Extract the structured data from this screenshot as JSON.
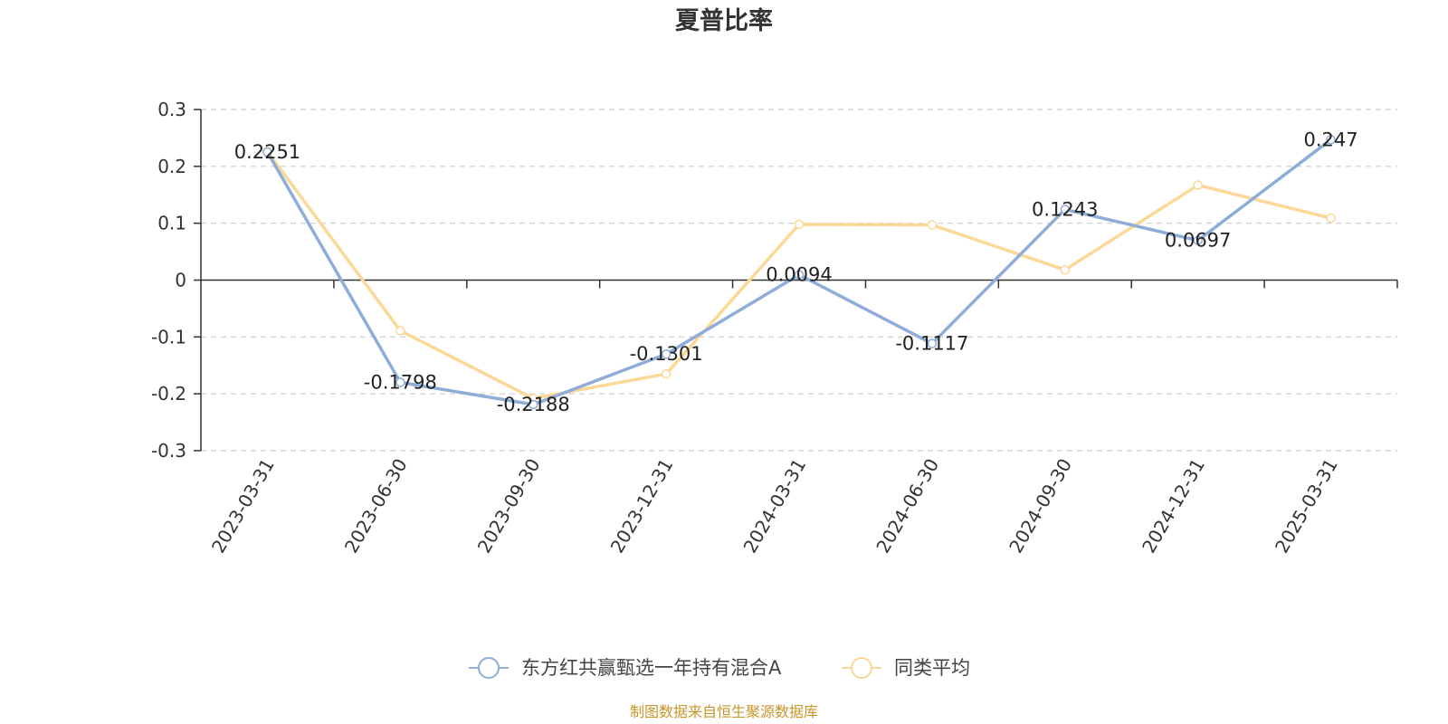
{
  "chart_data": {
    "type": "line",
    "title": "夏普比率",
    "categories": [
      "2023-03-31",
      "2023-06-30",
      "2023-09-30",
      "2023-12-31",
      "2024-03-31",
      "2024-06-30",
      "2024-09-30",
      "2024-12-31",
      "2025-03-31"
    ],
    "ylim": [
      -0.3,
      0.3
    ],
    "yticks": [
      0.3,
      0.2,
      0.1,
      0,
      -0.1,
      -0.2,
      -0.3
    ],
    "ytick_labels": [
      "0.3",
      "0.2",
      "0.1",
      "0",
      "-0.1",
      "-0.2",
      "-0.3"
    ],
    "grid": true,
    "legend_position": "bottom-center",
    "series": [
      {
        "name": "东方红共赢甄选一年持有混合A",
        "color": "#8eadd8",
        "values": [
          0.2251,
          -0.1798,
          -0.2188,
          -0.1301,
          0.0094,
          -0.1117,
          0.1243,
          0.0697,
          0.247
        ],
        "labels": [
          "0.2251",
          "-0.1798",
          "-0.2188",
          "-0.1301",
          "0.0094",
          "-0.1117",
          "0.1243",
          "0.0697",
          "0.247"
        ]
      },
      {
        "name": "同类平均",
        "color": "#fbd896",
        "values": [
          0.226,
          -0.089,
          -0.208,
          -0.165,
          0.098,
          0.097,
          0.018,
          0.167,
          0.109
        ]
      }
    ]
  },
  "source_text": "制图数据来自恒生聚源数据库"
}
